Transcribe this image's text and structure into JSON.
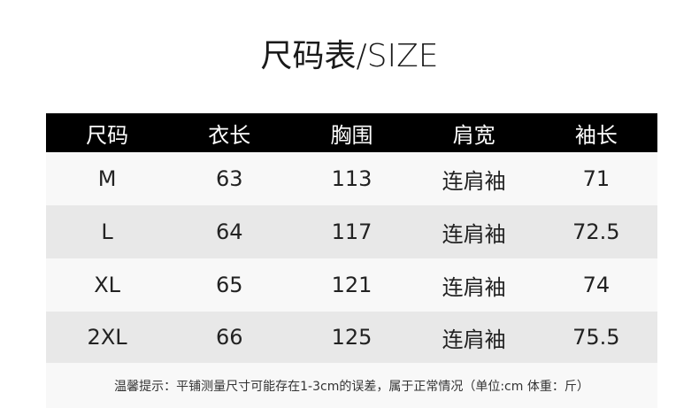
{
  "title": "尺码表/SIZE",
  "table": {
    "headers": [
      "尺码",
      "衣长",
      "胸围",
      "肩宽",
      "袖长"
    ],
    "rows": [
      [
        "M",
        "63",
        "113",
        "连肩袖",
        "71"
      ],
      [
        "L",
        "64",
        "117",
        "连肩袖",
        "72.5"
      ],
      [
        "XL",
        "65",
        "121",
        "连肩袖",
        "74"
      ],
      [
        "2XL",
        "66",
        "125",
        "连肩袖",
        "75.5"
      ]
    ]
  },
  "footer_note": "温馨提示：平铺测量尺寸可能存在1-3cm的误差，属于正常情况（单位:cm 体重：斤）",
  "colors": {
    "header_bg": "#000000",
    "row_light": "#f8f8f8",
    "row_dark": "#e8e8e8"
  }
}
